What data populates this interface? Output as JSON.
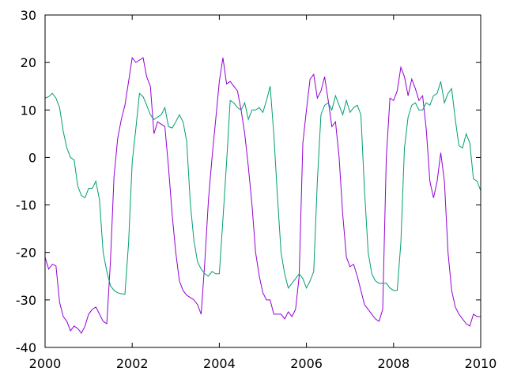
{
  "chart_data": {
    "type": "line",
    "title": "",
    "xlabel": "",
    "ylabel": "",
    "xlim": [
      2000,
      2010
    ],
    "ylim": [
      -40,
      30
    ],
    "grid": false,
    "legend": "none",
    "x_ticks": [
      "2000",
      "2002",
      "2004",
      "2006",
      "2008",
      "2010"
    ],
    "y_ticks": [
      "30",
      "20",
      "10",
      "0",
      "-10",
      "-20",
      "-30",
      "-40"
    ],
    "series": [
      {
        "color": "#9400d3",
        "x": [
          2000.0,
          2000.083,
          2000.167,
          2000.25,
          2000.333,
          2000.417,
          2000.5,
          2000.583,
          2000.667,
          2000.75,
          2000.833,
          2000.917,
          2001.0,
          2001.083,
          2001.167,
          2001.25,
          2001.333,
          2001.417,
          2001.5,
          2001.583,
          2001.667,
          2001.75,
          2001.833,
          2001.917,
          2002.0,
          2002.083,
          2002.167,
          2002.25,
          2002.333,
          2002.417,
          2002.5,
          2002.583,
          2002.667,
          2002.75,
          2002.833,
          2002.917,
          2003.0,
          2003.083,
          2003.167,
          2003.25,
          2003.333,
          2003.417,
          2003.5,
          2003.583,
          2003.667,
          2003.75,
          2003.833,
          2003.917,
          2004.0,
          2004.083,
          2004.167,
          2004.25,
          2004.333,
          2004.417,
          2004.5,
          2004.583,
          2004.667,
          2004.75,
          2004.833,
          2004.917,
          2005.0,
          2005.083,
          2005.167,
          2005.25,
          2005.333,
          2005.417,
          2005.5,
          2005.583,
          2005.667,
          2005.75,
          2005.833,
          2005.917,
          2006.0,
          2006.083,
          2006.167,
          2006.25,
          2006.333,
          2006.417,
          2006.5,
          2006.583,
          2006.667,
          2006.75,
          2006.833,
          2006.917,
          2007.0,
          2007.083,
          2007.167,
          2007.25,
          2007.333,
          2007.417,
          2007.5,
          2007.583,
          2007.667,
          2007.75,
          2007.833,
          2007.917,
          2008.0,
          2008.083,
          2008.167,
          2008.25,
          2008.333,
          2008.417,
          2008.5,
          2008.583,
          2008.667,
          2008.75,
          2008.833,
          2008.917,
          2009.0,
          2009.083,
          2009.167,
          2009.25,
          2009.333,
          2009.417,
          2009.5,
          2009.583,
          2009.667,
          2009.75,
          2009.833,
          2009.917,
          2010.0
        ],
        "y": [
          -21,
          -23.5,
          -22.5,
          -22.8,
          -30.5,
          -33.5,
          -34.5,
          -36.5,
          -35.5,
          -36,
          -37,
          -35.5,
          -33,
          -32,
          -31.5,
          -33,
          -34.5,
          -35,
          -22,
          -4,
          4,
          8,
          11,
          16,
          21,
          20,
          20.5,
          21,
          17,
          15,
          5,
          7.5,
          7,
          6.5,
          -2,
          -12,
          -20,
          -26,
          -28,
          -29,
          -29.5,
          -30,
          -31,
          -33,
          -22,
          -9,
          0,
          8,
          16,
          21,
          15.5,
          16,
          15,
          14,
          10,
          5,
          -2,
          -10,
          -20,
          -25,
          -28.5,
          -30,
          -30,
          -33,
          -33,
          -33,
          -34,
          -32.5,
          -33.5,
          -32,
          -25,
          3,
          10,
          16.5,
          17.5,
          12.5,
          14,
          17,
          12,
          6.5,
          7.5,
          0,
          -12,
          -21,
          -23,
          -22.5,
          -25,
          -28,
          -31,
          -32,
          -33,
          -34,
          -34.5,
          -32,
          0,
          12.5,
          12,
          14,
          19,
          17,
          13,
          16.5,
          14.5,
          12,
          13,
          6,
          -5,
          -8.5,
          -5,
          1,
          -5,
          -20,
          -28,
          -31.5,
          -33,
          -34,
          -35,
          -35.5,
          -33,
          -33.5,
          -33.5
        ]
      },
      {
        "color": "#009e73",
        "x": [
          2000.0,
          2000.083,
          2000.167,
          2000.25,
          2000.333,
          2000.417,
          2000.5,
          2000.583,
          2000.667,
          2000.75,
          2000.833,
          2000.917,
          2001.0,
          2001.083,
          2001.167,
          2001.25,
          2001.333,
          2001.417,
          2001.5,
          2001.583,
          2001.667,
          2001.75,
          2001.833,
          2001.917,
          2002.0,
          2002.083,
          2002.167,
          2002.25,
          2002.333,
          2002.417,
          2002.5,
          2002.583,
          2002.667,
          2002.75,
          2002.833,
          2002.917,
          2003.0,
          2003.083,
          2003.167,
          2003.25,
          2003.333,
          2003.417,
          2003.5,
          2003.583,
          2003.667,
          2003.75,
          2003.833,
          2003.917,
          2004.0,
          2004.083,
          2004.167,
          2004.25,
          2004.333,
          2004.417,
          2004.5,
          2004.583,
          2004.667,
          2004.75,
          2004.833,
          2004.917,
          2005.0,
          2005.083,
          2005.167,
          2005.25,
          2005.333,
          2005.417,
          2005.5,
          2005.583,
          2005.667,
          2005.75,
          2005.833,
          2005.917,
          2006.0,
          2006.083,
          2006.167,
          2006.25,
          2006.333,
          2006.417,
          2006.5,
          2006.583,
          2006.667,
          2006.75,
          2006.833,
          2006.917,
          2007.0,
          2007.083,
          2007.167,
          2007.25,
          2007.333,
          2007.417,
          2007.5,
          2007.583,
          2007.667,
          2007.75,
          2007.833,
          2007.917,
          2008.0,
          2008.083,
          2008.167,
          2008.25,
          2008.333,
          2008.417,
          2008.5,
          2008.583,
          2008.667,
          2008.75,
          2008.833,
          2008.917,
          2009.0,
          2009.083,
          2009.167,
          2009.25,
          2009.333,
          2009.417,
          2009.5,
          2009.583,
          2009.667,
          2009.75,
          2009.833,
          2009.917,
          2010.0
        ],
        "y": [
          12.5,
          12.8,
          13.5,
          12.5,
          10.5,
          5.5,
          2,
          0,
          -0.5,
          -6,
          -8,
          -8.5,
          -6.5,
          -6.5,
          -5,
          -9,
          -20,
          -24,
          -27,
          -28,
          -28.5,
          -28.7,
          -28.8,
          -18,
          -1,
          6,
          13.5,
          12.8,
          11,
          9,
          8,
          8.5,
          9,
          10.5,
          6.5,
          6.2,
          7.5,
          9,
          7.5,
          3.5,
          -9.5,
          -17.5,
          -22,
          -23.5,
          -24.5,
          -25,
          -24,
          -24.5,
          -24.5,
          -13,
          -1,
          12,
          11.5,
          10.5,
          10,
          11.5,
          8,
          10,
          10,
          10.5,
          9.5,
          12,
          15,
          5,
          -8,
          -20,
          -24.5,
          -27.5,
          -26.5,
          -25.5,
          -24.5,
          -25.5,
          -27.5,
          -26,
          -24,
          -5,
          9,
          11,
          11.5,
          10,
          13,
          11,
          9,
          12,
          9.5,
          10.5,
          11,
          9,
          -7,
          -20,
          -24.5,
          -26,
          -26.5,
          -26.5,
          -26.5,
          -27.5,
          -28,
          -28,
          -18,
          2,
          8.5,
          11,
          11.5,
          10,
          10,
          11.5,
          11,
          13,
          13.5,
          16,
          11.5,
          13.5,
          14.5,
          8,
          2.5,
          2,
          5,
          3,
          -4.5,
          -5,
          -7
        ]
      }
    ]
  }
}
